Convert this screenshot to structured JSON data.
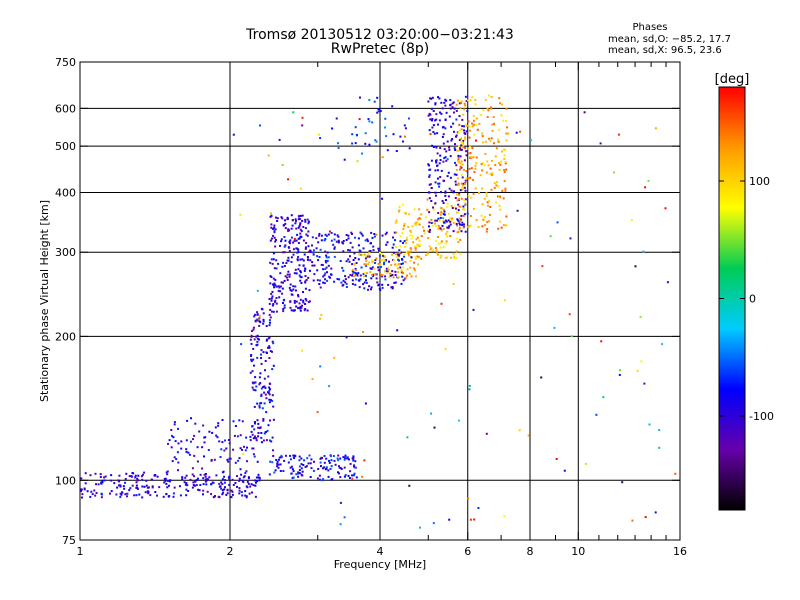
{
  "header": {
    "title_line1": "Tromsø 20130512 03:20:00−03:21:43",
    "title_line2": "RwPretec (8p)",
    "phase_title": "Phases",
    "stat_o": "mean, sd,O: −85.2, 17.7",
    "stat_x": "mean, sd,X:  96.5, 23.6"
  },
  "chart_data": {
    "type": "scatter",
    "xlabel": "Frequency [MHz]",
    "ylabel": "Stationary phase Virtual Height [km]",
    "x_scale": "log",
    "y_scale": "log",
    "xlim": [
      1,
      16
    ],
    "ylim": [
      75,
      750
    ],
    "x_ticks": [
      1,
      2,
      4,
      6,
      8,
      10,
      16
    ],
    "x_tick_labels": [
      "1",
      "2",
      "4",
      "6",
      "8",
      "10",
      "16"
    ],
    "x_minor_ticks": [
      3,
      5,
      7,
      9,
      11,
      12,
      13,
      14,
      15
    ],
    "y_ticks": [
      75,
      100,
      200,
      300,
      400,
      500,
      600,
      750
    ],
    "y_tick_labels": [
      "75",
      "100",
      "200",
      "300",
      "400",
      "500",
      "600",
      "750"
    ],
    "grid": true,
    "colorbar": {
      "label": "[deg]",
      "range": [
        -180,
        180
      ],
      "ticks": [
        100,
        0,
        -100
      ],
      "tick_labels": [
        "100",
        "0",
        "-100"
      ],
      "colors": [
        "#000000",
        "#6600aa",
        "#0000ff",
        "#00ccff",
        "#00cc55",
        "#ffff00",
        "#ff9900",
        "#ff0000"
      ]
    },
    "series": [
      {
        "freq_range": [
          1.0,
          2.3
        ],
        "height_range": [
          92,
          104
        ],
        "phase": -100,
        "count": 260
      },
      {
        "freq_range": [
          1.5,
          2.3
        ],
        "height_range": [
          104,
          135
        ],
        "phase": -95,
        "count": 100
      },
      {
        "freq_range": [
          2.2,
          2.45
        ],
        "height_range": [
          120,
          230
        ],
        "phase": -95,
        "count": 150
      },
      {
        "freq_range": [
          2.4,
          2.9
        ],
        "height_range": [
          225,
          360
        ],
        "phase": -100,
        "count": 260
      },
      {
        "freq_range": [
          2.4,
          3.6
        ],
        "height_range": [
          100,
          113
        ],
        "phase": -85,
        "count": 140
      },
      {
        "freq_range": [
          2.9,
          4.5
        ],
        "height_range": [
          250,
          330
        ],
        "phase": -90,
        "count": 260
      },
      {
        "freq_range": [
          3.5,
          4.8
        ],
        "height_range": [
          265,
          300
        ],
        "phase": 110,
        "count": 80
      },
      {
        "freq_range": [
          4.3,
          5.8
        ],
        "height_range": [
          290,
          380
        ],
        "phase": 110,
        "count": 150
      },
      {
        "freq_range": [
          5.0,
          6.0
        ],
        "height_range": [
          330,
          640
        ],
        "phase": -100,
        "count": 230
      },
      {
        "freq_range": [
          5.7,
          7.2
        ],
        "height_range": [
          330,
          640
        ],
        "phase": 120,
        "count": 230
      },
      {
        "freq_range": [
          3.2,
          4.6
        ],
        "height_range": [
          480,
          640
        ],
        "phase": -70,
        "count": 40
      },
      {
        "freq_range": [
          2.0,
          16.0
        ],
        "height_range": [
          78,
          600
        ],
        "phase": 20,
        "count": 130
      }
    ]
  }
}
